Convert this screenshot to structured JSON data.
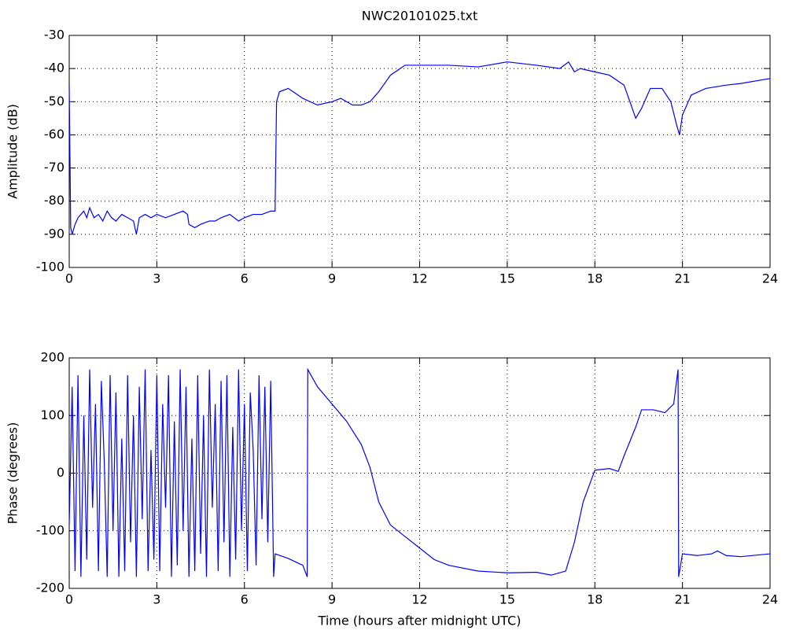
{
  "chart_data": [
    {
      "type": "line",
      "title": "NWC20101025.txt",
      "ylabel": "Amplitude (dB)",
      "grid": true,
      "xlim": [
        0,
        24
      ],
      "xticks": [
        0,
        3,
        6,
        9,
        12,
        15,
        18,
        21,
        24
      ],
      "ylim": [
        -100,
        -30
      ],
      "yticks": [
        -100,
        -90,
        -80,
        -70,
        -60,
        -50,
        -40,
        -30
      ],
      "series": [
        {
          "color": "#0000ff",
          "x": [
            0,
            0.05,
            0.1,
            0.2,
            0.3,
            0.4,
            0.5,
            0.6,
            0.7,
            0.85,
            1,
            1.15,
            1.3,
            1.45,
            1.6,
            1.8,
            2,
            2.2,
            2.3,
            2.4,
            2.6,
            2.8,
            3,
            3.3,
            3.6,
            3.9,
            4.05,
            4.1,
            4.3,
            4.5,
            4.8,
            5,
            5.2,
            5.5,
            5.8,
            6,
            6.3,
            6.6,
            6.9,
            7.05,
            7.1,
            7.2,
            7.5,
            8,
            8.5,
            9,
            9.3,
            9.7,
            10,
            10.3,
            10.6,
            11,
            11.5,
            12,
            13,
            14,
            15,
            16,
            16.8,
            17.1,
            17.3,
            17.5,
            18,
            18.5,
            19,
            19.4,
            19.6,
            19.9,
            20.3,
            20.6,
            20.8,
            20.9,
            21,
            21.3,
            21.8,
            22.5,
            23,
            24
          ],
          "values": [
            -45,
            -88,
            -90,
            -87,
            -85,
            -84,
            -83,
            -85,
            -82,
            -85,
            -84,
            -86,
            -83,
            -85,
            -86,
            -84,
            -85,
            -86,
            -90,
            -85,
            -84,
            -85,
            -84,
            -85,
            -84,
            -83,
            -84,
            -87,
            -88,
            -87,
            -86,
            -86,
            -85,
            -84,
            -86,
            -85,
            -84,
            -84,
            -83,
            -83,
            -50,
            -47,
            -46,
            -49,
            -51,
            -50,
            -49,
            -51,
            -51,
            -50,
            -47,
            -42,
            -39,
            -39,
            -39,
            -39.5,
            -38,
            -39,
            -40,
            -38,
            -41,
            -40,
            -41,
            -42,
            -45,
            -55,
            -52,
            -46,
            -46,
            -50,
            -57,
            -60,
            -54,
            -48,
            -46,
            -45,
            -44.5,
            -43
          ]
        }
      ]
    },
    {
      "type": "line",
      "ylabel": "Phase (degrees)",
      "xlabel": "Time (hours after midnight UTC)",
      "grid": true,
      "xlim": [
        0,
        24
      ],
      "xticks": [
        0,
        3,
        6,
        9,
        12,
        15,
        18,
        21,
        24
      ],
      "ylim": [
        -200,
        200
      ],
      "yticks": [
        -200,
        -100,
        0,
        100,
        200
      ],
      "series": [
        {
          "color": "#0000ff",
          "x": [
            0,
            0.1,
            0.2,
            0.3,
            0.4,
            0.5,
            0.6,
            0.7,
            0.8,
            0.9,
            1,
            1.1,
            1.2,
            1.3,
            1.4,
            1.5,
            1.6,
            1.7,
            1.8,
            1.9,
            2,
            2.1,
            2.2,
            2.3,
            2.4,
            2.5,
            2.6,
            2.7,
            2.8,
            2.9,
            3,
            3.1,
            3.2,
            3.3,
            3.4,
            3.5,
            3.6,
            3.7,
            3.8,
            3.9,
            4,
            4.1,
            4.2,
            4.3,
            4.4,
            4.5,
            4.6,
            4.7,
            4.8,
            4.9,
            5,
            5.1,
            5.2,
            5.3,
            5.4,
            5.5,
            5.6,
            5.7,
            5.8,
            5.9,
            6,
            6.1,
            6.2,
            6.3,
            6.4,
            6.5,
            6.6,
            6.7,
            6.8,
            6.9,
            7,
            7.05,
            7.5,
            8,
            8.15,
            8.17,
            8.5,
            9,
            9.5,
            10,
            10.3,
            10.6,
            11,
            11.5,
            12,
            12.5,
            13,
            14,
            15,
            16,
            16.5,
            17,
            17.3,
            17.6,
            18,
            18.5,
            18.8,
            19,
            19.4,
            19.6,
            20,
            20.4,
            20.7,
            20.85,
            20.87,
            21,
            21.5,
            22,
            22.2,
            22.5,
            23,
            24
          ],
          "values": [
            -90,
            150,
            -170,
            170,
            -180,
            100,
            -150,
            180,
            -60,
            120,
            -170,
            160,
            20,
            -180,
            170,
            -100,
            140,
            -180,
            60,
            -170,
            170,
            -120,
            100,
            -180,
            150,
            -80,
            180,
            -170,
            40,
            -150,
            170,
            -170,
            120,
            -60,
            170,
            -180,
            90,
            -160,
            180,
            -100,
            150,
            -180,
            60,
            -170,
            170,
            -140,
            100,
            -180,
            180,
            -60,
            120,
            -170,
            160,
            -120,
            170,
            -180,
            80,
            -150,
            180,
            -100,
            120,
            -170,
            140,
            40,
            -160,
            170,
            -80,
            150,
            -120,
            160,
            -180,
            -140,
            -148,
            -160,
            -180,
            180,
            150,
            120,
            90,
            50,
            10,
            -50,
            -90,
            -110,
            -130,
            -150,
            -160,
            -170,
            -173,
            -172,
            -177,
            -170,
            -120,
            -50,
            5,
            8,
            3,
            30,
            80,
            110,
            110,
            105,
            120,
            180,
            -180,
            -140,
            -143,
            -140,
            -135,
            -143,
            -145,
            -140
          ]
        }
      ]
    }
  ]
}
